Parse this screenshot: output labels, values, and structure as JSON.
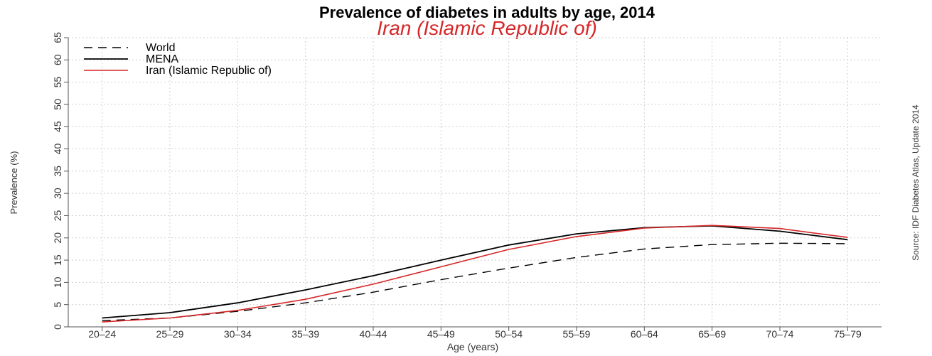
{
  "chart_data": {
    "type": "line",
    "title": "Prevalence of diabetes in adults by age, 2014",
    "subtitle": "Iran (Islamic Republic of)",
    "xlabel": "Age (years)",
    "ylabel": "Prevalence (%)",
    "source": "Source: IDF Diabetes Atlas, Update 2014",
    "categories": [
      "20–24",
      "25–29",
      "30–34",
      "35–39",
      "40–44",
      "45–49",
      "50–54",
      "55–59",
      "60–64",
      "65–69",
      "70–74",
      "75–79"
    ],
    "ylim": [
      0,
      65
    ],
    "yticks": [
      "0",
      "5",
      "10",
      "15",
      "20",
      "25",
      "30",
      "35",
      "40",
      "45",
      "50",
      "55",
      "60",
      "65"
    ],
    "grid": true,
    "legend_position": "top-left",
    "colors": {
      "subtitle": "#d62728",
      "World": "#000000",
      "MENA": "#000000",
      "Iran": "#d62728"
    },
    "series": [
      {
        "name": "World",
        "style": "dashed",
        "values": [
          1.4,
          2.0,
          3.5,
          5.4,
          7.8,
          10.6,
          13.2,
          15.6,
          17.5,
          18.5,
          18.8,
          18.7
        ]
      },
      {
        "name": "MENA",
        "style": "solid",
        "values": [
          2.0,
          3.2,
          5.4,
          8.3,
          11.5,
          15.0,
          18.4,
          20.9,
          22.3,
          22.7,
          21.5,
          19.6
        ]
      },
      {
        "name": "Iran (Islamic Republic of)",
        "style": "solid-red",
        "values": [
          1.1,
          2.0,
          3.7,
          6.2,
          9.6,
          13.5,
          17.4,
          20.3,
          22.2,
          22.8,
          22.1,
          20.1
        ]
      }
    ]
  }
}
